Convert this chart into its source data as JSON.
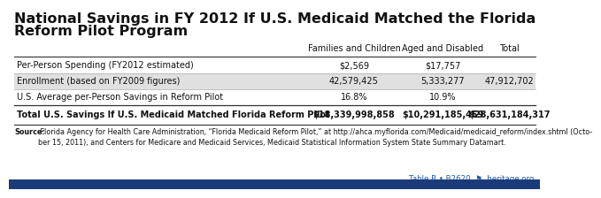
{
  "title_line1": "National Savings in FY 2012 If U.S. Medicaid Matched the Florida",
  "title_line2": "Reform Pilot Program",
  "col_headers": [
    "Families and Children",
    "Aged and Disabled",
    "Total"
  ],
  "rows": [
    {
      "label": "Per-Person Spending (FY2012 estimated)",
      "values": [
        "$2,569",
        "$17,757",
        ""
      ],
      "bold": false,
      "shaded": false
    },
    {
      "label": "Enrollment (based on FY2009 figures)",
      "values": [
        "42,579,425",
        "5,333,277",
        "47,912,702"
      ],
      "bold": false,
      "shaded": true
    },
    {
      "label": "U.S. Average per-Person Savings in Reform Pilot",
      "values": [
        "16.8%",
        "10.9%",
        ""
      ],
      "bold": false,
      "shaded": false
    },
    {
      "label": "Total U.S. Savings If U.S. Medicaid Matched Florida Reform Pilot",
      "values": [
        "$18,339,998,858",
        "$10,291,185,459",
        "$28,631,184,317"
      ],
      "bold": true,
      "shaded": false
    }
  ],
  "source_bold": "Source:",
  "source_normal": " Florida Agency for Health Care Administration, “Florida Medicaid Reform Pilot,” at ",
  "source_italic": "http://ahca.myflorida.com/Medicaid/medicaid_reform/index.shtml",
  "source_end": " (Octo-\nber 15, 2011), and Centers for Medicare and Medicaid Services, Medicaid Statistical Information System State Summary Datamart.",
  "footer_text": "Table B • B2620",
  "footer_site": "heritage.org",
  "bg_color": "#ffffff",
  "shaded_row_color": "#e0e0e0",
  "line_color_dark": "#333333",
  "line_color_light": "#aaaaaa",
  "bottom_bar_color": "#1a3a7a",
  "footer_color": "#1a5aaa",
  "title_fontsize": 11.5,
  "header_fontsize": 7.0,
  "cell_fontsize": 7.0,
  "source_fontsize": 5.8,
  "footer_fontsize": 6.2
}
